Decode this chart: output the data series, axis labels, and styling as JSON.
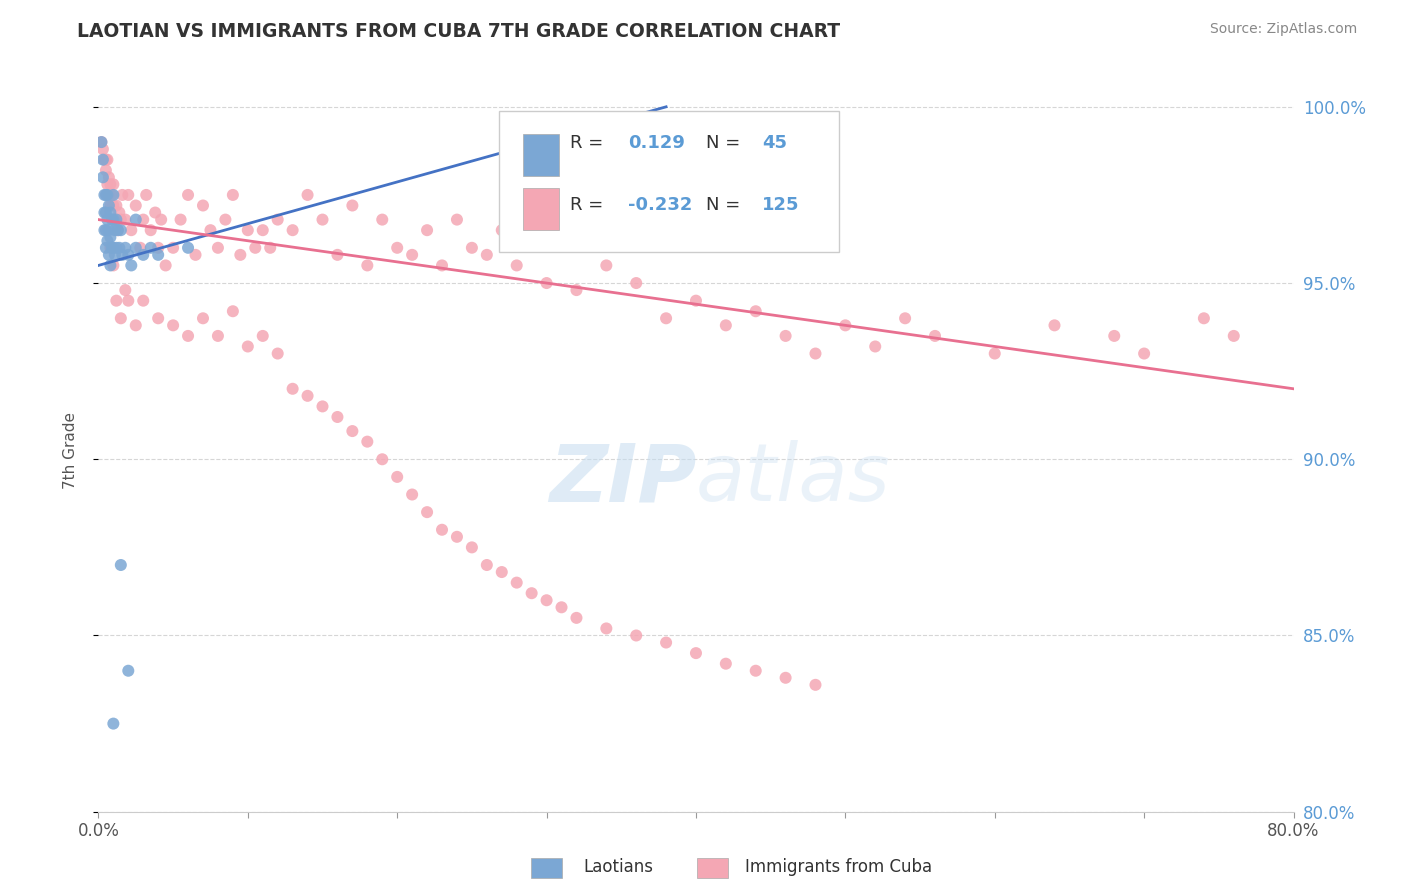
{
  "title": "LAOTIAN VS IMMIGRANTS FROM CUBA 7TH GRADE CORRELATION CHART",
  "source": "Source: ZipAtlas.com",
  "ylabel": "7th Grade",
  "xlim": [
    0.0,
    0.8
  ],
  "ylim": [
    0.8,
    1.005
  ],
  "right_yticks": [
    1.0,
    0.95,
    0.9,
    0.85,
    0.8
  ],
  "right_yticklabels": [
    "100.0%",
    "95.0%",
    "90.0%",
    "85.0%",
    "80.0%"
  ],
  "xticks": [
    0.0,
    0.1,
    0.2,
    0.3,
    0.4,
    0.5,
    0.6,
    0.7,
    0.8
  ],
  "xticklabels": [
    "0.0%",
    "",
    "",
    "",
    "",
    "",
    "",
    "",
    "80.0%"
  ],
  "blue_color": "#7BA7D4",
  "pink_color": "#F4A7B4",
  "blue_line_color": "#4472C4",
  "pink_line_color": "#E87090",
  "blue_line_x0": 0.0,
  "blue_line_y0": 0.955,
  "blue_line_x1": 0.38,
  "blue_line_y1": 1.0,
  "pink_line_x0": 0.0,
  "pink_line_y0": 0.968,
  "pink_line_x1": 0.8,
  "pink_line_y1": 0.92,
  "blue_scatter_x": [
    0.002,
    0.003,
    0.003,
    0.004,
    0.004,
    0.004,
    0.005,
    0.005,
    0.005,
    0.005,
    0.006,
    0.006,
    0.006,
    0.007,
    0.007,
    0.007,
    0.008,
    0.008,
    0.008,
    0.009,
    0.009,
    0.01,
    0.01,
    0.01,
    0.011,
    0.011,
    0.012,
    0.012,
    0.013,
    0.014,
    0.015,
    0.016,
    0.018,
    0.02,
    0.022,
    0.025,
    0.03,
    0.035,
    0.04,
    0.06,
    0.01,
    0.015,
    0.02,
    0.025,
    0.37
  ],
  "blue_scatter_y": [
    0.99,
    0.985,
    0.98,
    0.975,
    0.97,
    0.965,
    0.975,
    0.97,
    0.965,
    0.96,
    0.975,
    0.968,
    0.962,
    0.972,
    0.965,
    0.958,
    0.97,
    0.963,
    0.955,
    0.968,
    0.96,
    0.975,
    0.968,
    0.96,
    0.965,
    0.958,
    0.968,
    0.96,
    0.965,
    0.96,
    0.965,
    0.958,
    0.96,
    0.958,
    0.955,
    0.96,
    0.958,
    0.96,
    0.958,
    0.96,
    0.825,
    0.87,
    0.84,
    0.968,
    0.968
  ],
  "pink_scatter_x": [
    0.002,
    0.003,
    0.004,
    0.005,
    0.005,
    0.006,
    0.006,
    0.007,
    0.007,
    0.008,
    0.008,
    0.009,
    0.01,
    0.01,
    0.011,
    0.012,
    0.013,
    0.014,
    0.015,
    0.016,
    0.018,
    0.02,
    0.022,
    0.025,
    0.028,
    0.03,
    0.032,
    0.035,
    0.038,
    0.04,
    0.042,
    0.045,
    0.05,
    0.055,
    0.06,
    0.065,
    0.07,
    0.075,
    0.08,
    0.085,
    0.09,
    0.095,
    0.1,
    0.105,
    0.11,
    0.115,
    0.12,
    0.13,
    0.14,
    0.15,
    0.16,
    0.17,
    0.18,
    0.19,
    0.2,
    0.21,
    0.22,
    0.23,
    0.24,
    0.25,
    0.26,
    0.27,
    0.28,
    0.29,
    0.3,
    0.32,
    0.34,
    0.36,
    0.38,
    0.4,
    0.42,
    0.44,
    0.46,
    0.48,
    0.5,
    0.52,
    0.54,
    0.56,
    0.6,
    0.64,
    0.68,
    0.7,
    0.74,
    0.76,
    0.008,
    0.01,
    0.012,
    0.015,
    0.018,
    0.02,
    0.025,
    0.03,
    0.04,
    0.05,
    0.06,
    0.07,
    0.08,
    0.09,
    0.1,
    0.11,
    0.12,
    0.13,
    0.14,
    0.15,
    0.16,
    0.17,
    0.18,
    0.19,
    0.2,
    0.21,
    0.22,
    0.23,
    0.24,
    0.25,
    0.26,
    0.27,
    0.28,
    0.29,
    0.3,
    0.31,
    0.32,
    0.34,
    0.36,
    0.38,
    0.4,
    0.42,
    0.44,
    0.46,
    0.48
  ],
  "pink_scatter_y": [
    0.99,
    0.988,
    0.985,
    0.982,
    0.985,
    0.978,
    0.985,
    0.975,
    0.98,
    0.972,
    0.978,
    0.975,
    0.972,
    0.978,
    0.968,
    0.972,
    0.965,
    0.97,
    0.968,
    0.975,
    0.968,
    0.975,
    0.965,
    0.972,
    0.96,
    0.968,
    0.975,
    0.965,
    0.97,
    0.96,
    0.968,
    0.955,
    0.96,
    0.968,
    0.975,
    0.958,
    0.972,
    0.965,
    0.96,
    0.968,
    0.975,
    0.958,
    0.965,
    0.96,
    0.965,
    0.96,
    0.968,
    0.965,
    0.975,
    0.968,
    0.958,
    0.972,
    0.955,
    0.968,
    0.96,
    0.958,
    0.965,
    0.955,
    0.968,
    0.96,
    0.958,
    0.965,
    0.955,
    0.968,
    0.95,
    0.948,
    0.955,
    0.95,
    0.94,
    0.945,
    0.938,
    0.942,
    0.935,
    0.93,
    0.938,
    0.932,
    0.94,
    0.935,
    0.93,
    0.938,
    0.935,
    0.93,
    0.94,
    0.935,
    0.96,
    0.955,
    0.945,
    0.94,
    0.948,
    0.945,
    0.938,
    0.945,
    0.94,
    0.938,
    0.935,
    0.94,
    0.935,
    0.942,
    0.932,
    0.935,
    0.93,
    0.92,
    0.918,
    0.915,
    0.912,
    0.908,
    0.905,
    0.9,
    0.895,
    0.89,
    0.885,
    0.88,
    0.878,
    0.875,
    0.87,
    0.868,
    0.865,
    0.862,
    0.86,
    0.858,
    0.855,
    0.852,
    0.85,
    0.848,
    0.845,
    0.842,
    0.84,
    0.838,
    0.836
  ]
}
